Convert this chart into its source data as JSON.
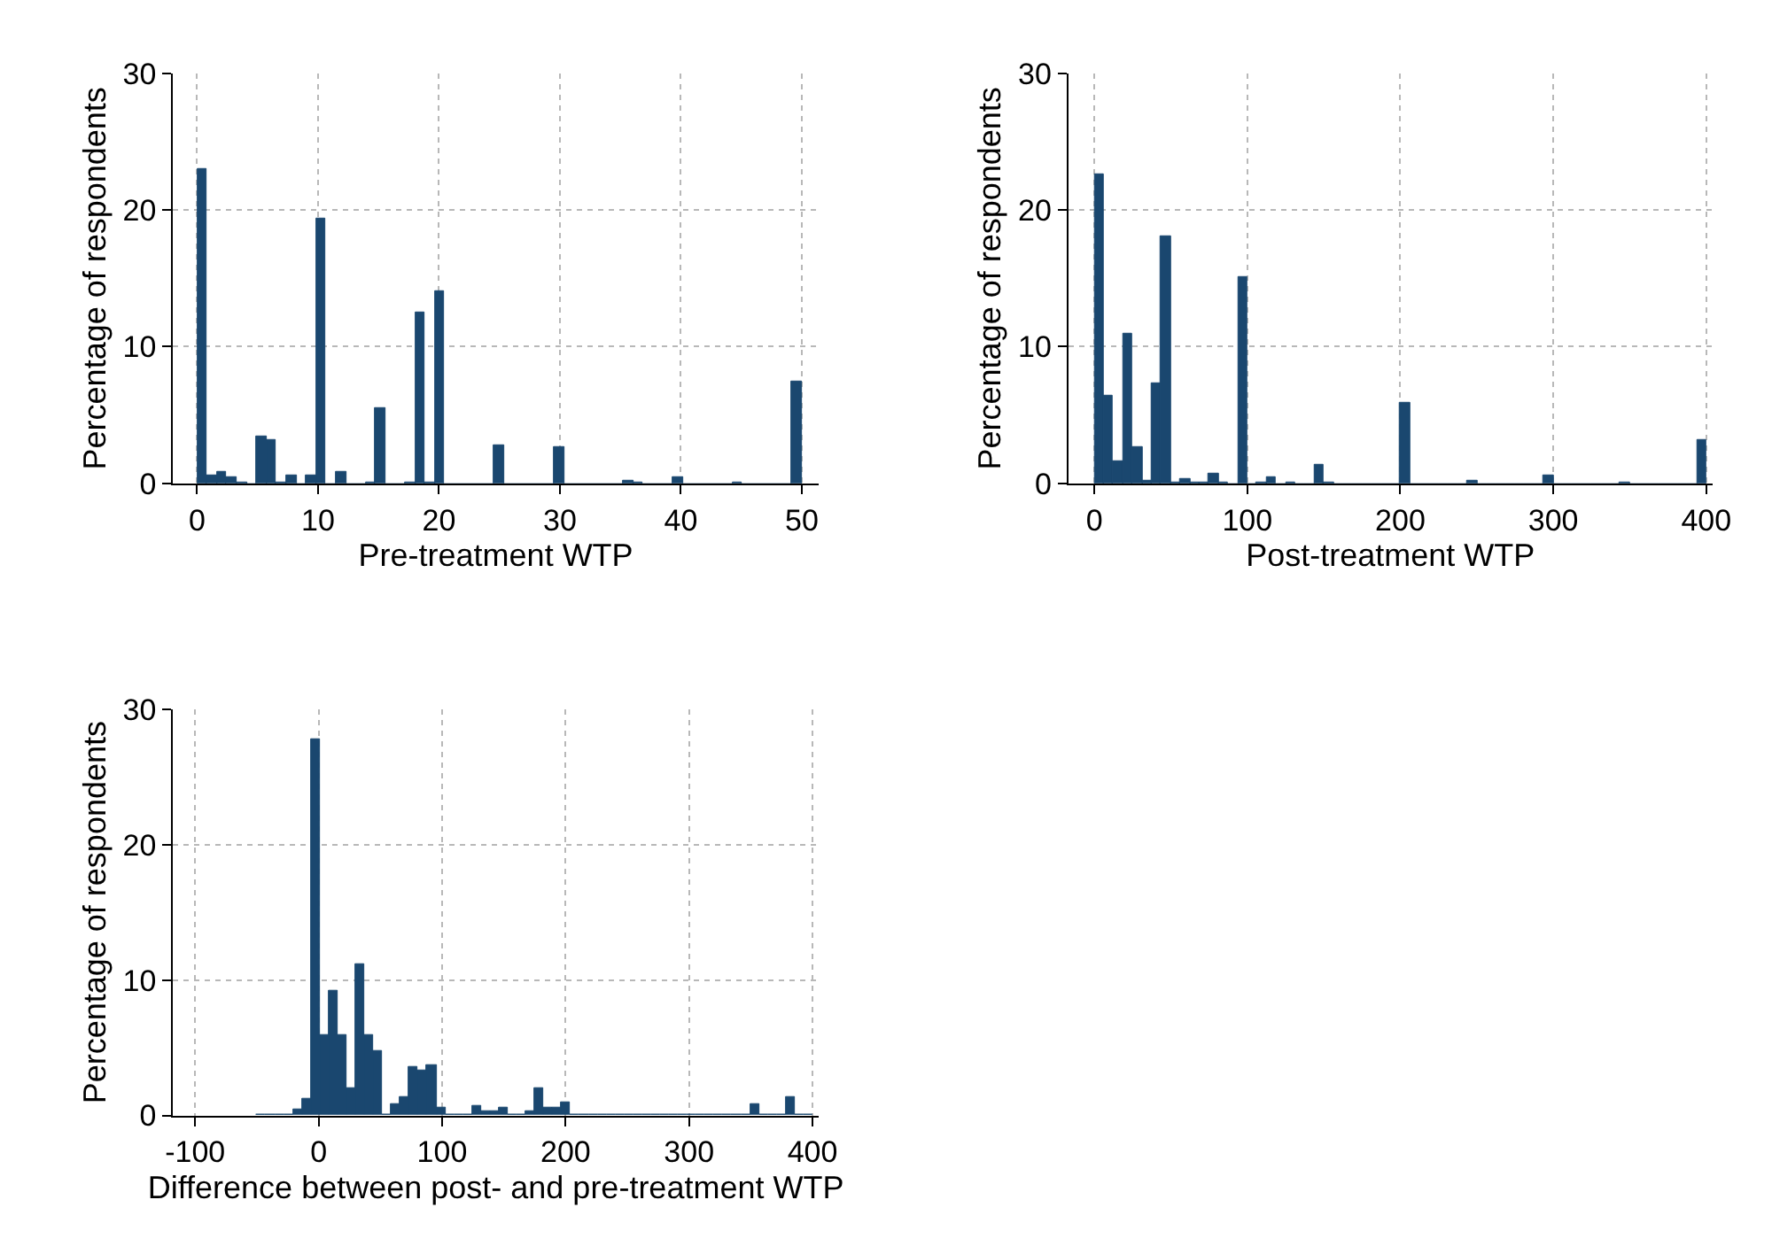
{
  "chart_data": [
    {
      "type": "histogram",
      "xlabel": "Pre-treatment WTP",
      "ylabel": "Percentage of respondents",
      "color": "#1a476f",
      "grid": true,
      "bins": [
        0,
        0.82,
        1.64,
        2.46,
        3.28,
        4.1,
        4.92,
        5.74,
        6.56,
        7.38,
        8.2,
        9.02,
        9.84,
        10.66,
        11.48,
        12.3,
        13.11,
        13.93,
        14.75,
        15.57,
        16.39,
        17.21,
        18.03,
        18.85,
        19.67,
        20.49,
        21.31,
        22.13,
        22.95,
        23.77,
        24.59,
        25.41,
        26.23,
        27.05,
        27.87,
        28.69,
        29.51,
        30.33,
        31.15,
        31.97,
        32.79,
        33.61,
        34.43,
        35.25,
        36.07,
        36.89,
        37.7,
        38.52,
        39.34,
        40.16,
        40.98,
        41.8,
        42.62,
        43.44,
        44.26,
        45.08,
        45.9,
        46.72,
        47.54,
        48.36,
        49.18,
        50
      ],
      "values": [
        23.0,
        0.6,
        0.8,
        0.5,
        0.1,
        0,
        3.5,
        3.2,
        0.1,
        0.6,
        0,
        0.6,
        19.4,
        0,
        0.8,
        0,
        0,
        0.1,
        5.5,
        0,
        0,
        0.1,
        12.5,
        0.1,
        14.0,
        0,
        0,
        0,
        0,
        0,
        2.8,
        0,
        0,
        0,
        0,
        0,
        2.6,
        0,
        0,
        0,
        0,
        0,
        0,
        0.2,
        0.1,
        0,
        0,
        0,
        0.5,
        0,
        0,
        0,
        0,
        0,
        0.1,
        0,
        0,
        0,
        0,
        0,
        7.4
      ],
      "xlim": [
        -2,
        51.4
      ],
      "xticks": [
        0,
        10,
        20,
        30,
        40,
        50
      ],
      "ylim": [
        0,
        30
      ],
      "yticks": [
        0,
        10,
        20,
        30
      ]
    },
    {
      "type": "histogram",
      "xlabel": "Post-treatment WTP",
      "ylabel": "Percentage of respondents",
      "color": "#1a476f",
      "grid": true,
      "bins": [
        0,
        6.25,
        12.5,
        18.75,
        25,
        31.25,
        37.5,
        43.75,
        50,
        56.25,
        62.5,
        68.75,
        75,
        81.25,
        87.5,
        93.75,
        100,
        106.25,
        112.5,
        118.75,
        125,
        131.25,
        137.5,
        143.75,
        150,
        156.25,
        162.5,
        168.75,
        175,
        181.25,
        187.5,
        193.75,
        200,
        206.25,
        212.5,
        218.75,
        225,
        231.25,
        237.5,
        243.75,
        250,
        256.25,
        262.5,
        268.75,
        275,
        281.25,
        287.5,
        293.75,
        300,
        306.25,
        312.5,
        318.75,
        325,
        331.25,
        337.5,
        343.75,
        350,
        356.25,
        362.5,
        368.75,
        375,
        381.25,
        387.5,
        393.75,
        400
      ],
      "values": [
        22.6,
        6.4,
        1.6,
        11.0,
        2.6,
        0.2,
        7.3,
        18.1,
        0.1,
        0.3,
        0.1,
        0.1,
        0.7,
        0.1,
        0,
        15.1,
        0,
        0.1,
        0.5,
        0,
        0.1,
        0,
        0,
        1.4,
        0.1,
        0,
        0,
        0,
        0,
        0,
        0,
        0,
        5.9,
        0,
        0,
        0,
        0,
        0,
        0,
        0.2,
        0,
        0,
        0,
        0,
        0,
        0,
        0,
        0.6,
        0,
        0,
        0,
        0,
        0,
        0,
        0,
        0.1,
        0,
        0,
        0,
        0,
        0,
        0,
        0,
        3.2
      ],
      "xlim": [
        -17,
        404
      ],
      "xticks": [
        0,
        100,
        200,
        300,
        400
      ],
      "ylim": [
        0,
        30
      ],
      "yticks": [
        0,
        10,
        20,
        30
      ]
    },
    {
      "type": "histogram",
      "xlabel": "Difference between post- and pre-treatment WTP",
      "ylabel": "Percentage of respondents",
      "color": "#1a476f",
      "grid": true,
      "bins": [
        -50,
        -42.74,
        -35.48,
        -28.23,
        -20.97,
        -13.71,
        -6.45,
        0.81,
        8.06,
        15.32,
        22.58,
        29.84,
        37.1,
        44.35,
        51.61,
        58.87,
        66.13,
        73.39,
        80.65,
        87.9,
        95.16,
        102.42,
        109.68,
        116.94,
        124.19,
        131.45,
        138.71,
        145.97,
        153.23,
        160.48,
        167.74,
        175.0,
        182.26,
        189.52,
        196.77,
        204.03,
        211.29,
        218.55,
        225.81,
        233.06,
        240.32,
        247.58,
        254.84,
        262.1,
        269.35,
        276.61,
        283.87,
        291.13,
        298.39,
        305.65,
        312.9,
        320.16,
        327.42,
        334.68,
        341.94,
        349.19,
        356.45,
        363.71,
        370.97,
        378.23,
        385.48,
        392.74,
        400
      ],
      "values": [
        0.1,
        0.1,
        0.1,
        0.1,
        0.5,
        1.2,
        27.8,
        5.9,
        9.2,
        6.0,
        2.0,
        11.2,
        6.0,
        4.8,
        0.1,
        0.8,
        1.3,
        3.6,
        3.3,
        3.7,
        0.6,
        0.1,
        0,
        0.1,
        0.7,
        0.3,
        0.3,
        0.6,
        0.1,
        0.1,
        0.3,
        2.0,
        0.6,
        0.6,
        1.0,
        0,
        0,
        0.1,
        0.1,
        0,
        0,
        0.1,
        0,
        0,
        0.1,
        0.1,
        0,
        0,
        0.1,
        0,
        0,
        0,
        0,
        0.1,
        0,
        0.9,
        0,
        0.1,
        0,
        1.3,
        0.1,
        0
      ],
      "xlim": [
        -118,
        405
      ],
      "xticks": [
        -100,
        0,
        100,
        200,
        300,
        400
      ],
      "ylim": [
        0,
        30
      ],
      "yticks": [
        0,
        10,
        20,
        30
      ]
    }
  ]
}
